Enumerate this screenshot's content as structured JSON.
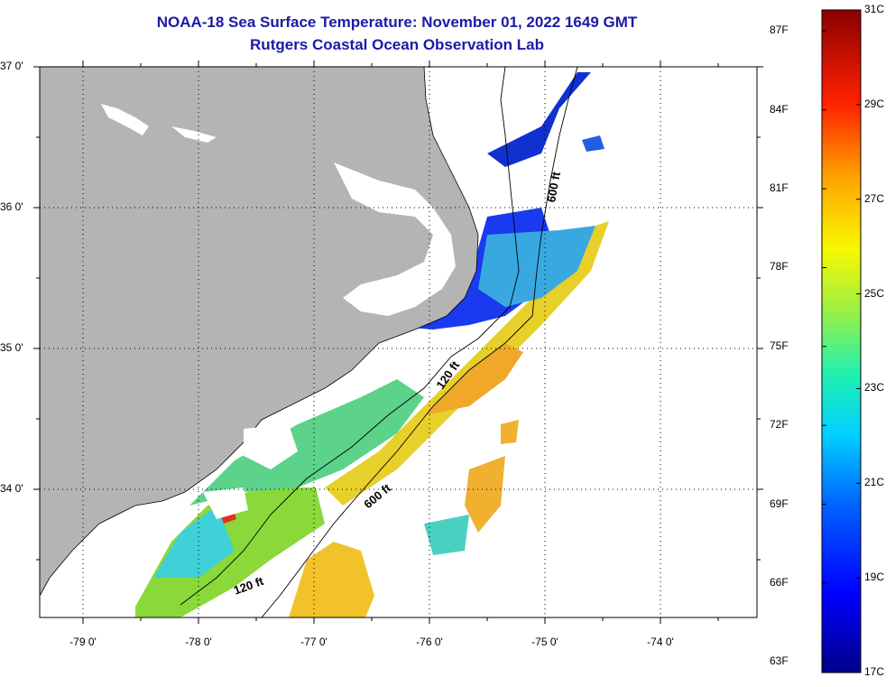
{
  "title_line1": "NOAA-18 Sea Surface Temperature:  November 01, 2022 1649 GMT",
  "title_line2": "Rutgers Coastal Ocean Observation Lab",
  "lat_labels": [
    {
      "lat": 37,
      "text": "37 0'"
    },
    {
      "lat": 36,
      "text": "36 0'"
    },
    {
      "lat": 35,
      "text": "35 0'"
    },
    {
      "lat": 34,
      "text": "34 0'"
    }
  ],
  "lon_labels": [
    {
      "lon": -79,
      "text": "-79 0'"
    },
    {
      "lon": -78,
      "text": "-78 0'"
    },
    {
      "lon": -77,
      "text": "-77 0'"
    },
    {
      "lon": -76,
      "text": "-76 0'"
    },
    {
      "lon": -75,
      "text": "-75 0'"
    },
    {
      "lon": -74,
      "text": "-74 0'"
    }
  ],
  "contour_labels": {
    "c600_north": "600 ft",
    "c600_south": "600 ft",
    "c120_mid": "120 ft",
    "c120_south": "120 ft"
  },
  "colorbar": {
    "min_c": 17,
    "max_c": 31,
    "fahrenheit_labels": [
      "87F",
      "84F",
      "81F",
      "78F",
      "75F",
      "72F",
      "69F",
      "66F",
      "63F"
    ],
    "celsius_labels": [
      "31C",
      "29C",
      "27C",
      "25C",
      "23C",
      "21C",
      "19C",
      "17C"
    ]
  },
  "colors": {
    "land": "#b4b4b4",
    "title": "#1a1aa8",
    "cold": "#00008a",
    "warm": "#8a0000"
  }
}
